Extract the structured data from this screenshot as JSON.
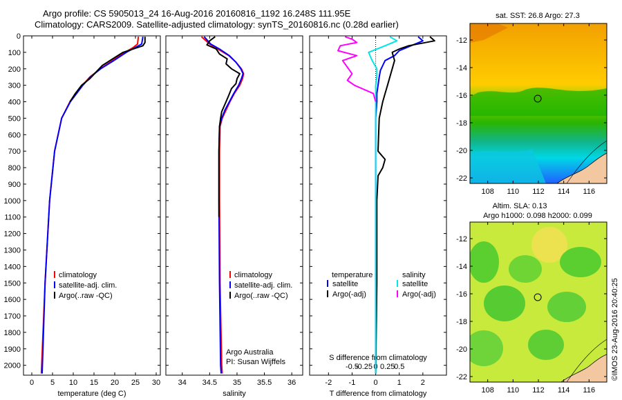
{
  "header": {
    "line1": "Argo profile: CS 5905013_24 16-Aug-2016 20160816_1192 16.248S 111.95E",
    "line2": "Climatology: CARS2009. Satellite-adjusted climatology: synTS_20160816.nc (0.28d earlier)"
  },
  "stamp": "©IMOS 23-Aug-2016 20:40:25",
  "colors": {
    "climatology": "#ff0000",
    "satellite": "#0000ff",
    "argo": "#000000",
    "sat_salinity": "#00e5e5",
    "argo_salinity": "#ff00ff"
  },
  "depth_axis": {
    "ticks": [
      0,
      100,
      200,
      300,
      400,
      500,
      600,
      700,
      800,
      900,
      1000,
      1100,
      1200,
      1300,
      1400,
      1500,
      1600,
      1700,
      1800,
      1900,
      2000
    ],
    "range": [
      0,
      2060
    ]
  },
  "chart_data": [
    {
      "type": "line",
      "id": "temperature",
      "xlabel": "temperature (deg C)",
      "xlim": [
        -2,
        31
      ],
      "xticks": [
        0,
        5,
        10,
        15,
        20,
        25,
        30
      ],
      "legend": {
        "placement": "bottom-left",
        "entries": [
          "climatology",
          "satellite-adj. clim.",
          "Argo(..raw -QC)"
        ]
      },
      "series": [
        {
          "name": "climatology",
          "color": "#ff0000",
          "depth": [
            5,
            50,
            70,
            100,
            150,
            200,
            250,
            300,
            400,
            500,
            700,
            1000,
            1500,
            2050
          ],
          "values": [
            25.7,
            25.5,
            24.5,
            22.5,
            19.5,
            16.5,
            14.0,
            12.2,
            9.2,
            7.2,
            5.5,
            4.3,
            3.2,
            2.3
          ]
        },
        {
          "name": "satellite-adj. clim.",
          "color": "#0000ff",
          "depth": [
            5,
            50,
            70,
            100,
            150,
            200,
            250,
            300,
            400,
            500,
            700,
            1000,
            1500,
            2050
          ],
          "values": [
            26.8,
            26.5,
            25.0,
            22.8,
            19.8,
            16.6,
            14.1,
            12.3,
            9.3,
            7.2,
            5.5,
            4.3,
            3.2,
            2.5
          ]
        },
        {
          "name": "Argo(..raw -QC)",
          "color": "#000000",
          "depth": [
            5,
            40,
            60,
            75,
            100,
            140,
            180,
            220,
            260,
            300,
            350,
            400
          ],
          "values": [
            27.3,
            27.3,
            26.8,
            25.0,
            22.0,
            19.5,
            17.0,
            15.5,
            14.0,
            12.0,
            10.5,
            9.2
          ]
        }
      ]
    },
    {
      "type": "line",
      "id": "salinity",
      "xlabel": "salinity",
      "xlim": [
        33.7,
        36.2
      ],
      "xticks": [
        34,
        34.5,
        35,
        35.5,
        36
      ],
      "legend": {
        "placement": "bottom-left",
        "entries": [
          "climatology",
          "satellite-adj. clim.",
          "Argo(..raw -QC)"
        ]
      },
      "annotation": [
        "Argo Australia",
        "PI: Susan Wijffels"
      ],
      "series": [
        {
          "name": "climatology",
          "color": "#ff0000",
          "depth": [
            5,
            50,
            80,
            120,
            160,
            200,
            230,
            260,
            300,
            350,
            400,
            450,
            500,
            550,
            700,
            1000,
            1500,
            2000,
            2050
          ],
          "values": [
            34.35,
            34.5,
            34.65,
            34.85,
            34.98,
            35.08,
            35.12,
            35.1,
            35.05,
            34.95,
            34.87,
            34.8,
            34.73,
            34.69,
            34.68,
            34.68,
            34.69,
            34.72,
            34.73
          ]
        },
        {
          "name": "satellite-adj. clim.",
          "color": "#0000ff",
          "depth": [
            5,
            50,
            80,
            120,
            160,
            200,
            230,
            260,
            300,
            350,
            400,
            450,
            500,
            550,
            700,
            1000,
            1500,
            2000,
            2050
          ],
          "values": [
            34.4,
            34.52,
            34.68,
            34.86,
            34.98,
            35.07,
            35.11,
            35.08,
            35.03,
            34.94,
            34.86,
            34.78,
            34.72,
            34.68,
            34.67,
            34.67,
            34.68,
            34.7,
            34.71
          ]
        },
        {
          "name": "Argo(..raw -QC)",
          "color": "#000000",
          "depth": [
            5,
            30,
            55,
            80,
            110,
            140,
            170,
            200,
            230,
            260,
            290,
            320,
            360,
            400,
            460,
            500,
            550,
            700,
            1000,
            1100
          ],
          "values": [
            34.6,
            34.5,
            34.45,
            34.62,
            34.68,
            34.82,
            34.8,
            34.9,
            35.05,
            35.0,
            34.98,
            34.9,
            34.85,
            34.8,
            34.72,
            34.7,
            34.68,
            34.67,
            34.67,
            34.67
          ]
        }
      ]
    },
    {
      "type": "line",
      "id": "difference",
      "xlabel": "T difference from climatology",
      "xlabel2": "S difference from climatology",
      "xlim": [
        -2.8,
        3.0
      ],
      "xticks": [
        -2,
        -1,
        0,
        1,
        2
      ],
      "xticks_top": [
        -0.5,
        -0.25,
        0,
        0.25,
        0.5
      ],
      "legend": {
        "placement": "bottom",
        "entries": [
          "temperature",
          "salinity",
          "satellite",
          "Argo(-adj)"
        ]
      },
      "series": [
        {
          "name": "temperature satellite",
          "color": "#0000ff",
          "depth": [
            5,
            30,
            60,
            90,
            120,
            150,
            180,
            210,
            250,
            300,
            350,
            400,
            500,
            700,
            1000,
            2050
          ],
          "values": [
            1.8,
            2.0,
            1.5,
            1.0,
            0.8,
            0.4,
            0.3,
            0.2,
            0.15,
            0.1,
            0.05,
            0.05,
            0.0,
            0.0,
            0.0,
            0.0
          ]
        },
        {
          "name": "temperature Argo(-adj)",
          "color": "#000000",
          "depth": [
            5,
            30,
            60,
            80,
            100,
            150,
            200,
            250,
            300,
            350,
            400,
            500,
            700,
            750,
            800,
            850,
            1000,
            1500,
            2050
          ],
          "values": [
            2.3,
            2.5,
            1.4,
            1.0,
            0.7,
            0.8,
            0.7,
            0.6,
            0.5,
            0.4,
            0.3,
            0.15,
            0.1,
            0.4,
            0.3,
            0.1,
            0.05,
            0.05,
            0.0
          ]
        },
        {
          "name": "salinity satellite",
          "color": "#00e5e5",
          "depth": [
            5,
            30,
            60,
            100,
            150,
            200,
            250,
            300,
            400,
            600,
            1000,
            2050
          ],
          "values": [
            0.6,
            0.9,
            0.4,
            -0.3,
            -0.15,
            0.05,
            0.05,
            0.0,
            0.0,
            0.0,
            0.0,
            0.0
          ]
        },
        {
          "name": "salinity Argo(-adj)",
          "color": "#ff00ff",
          "depth": [
            5,
            20,
            40,
            60,
            90,
            120,
            150,
            190,
            230,
            270,
            300,
            350,
            400
          ],
          "values": [
            -1.3,
            -1.0,
            -0.8,
            -1.5,
            -1.6,
            -0.8,
            -1.4,
            -1.2,
            -1.0,
            -1.2,
            -0.9,
            -0.1,
            0.0
          ]
        }
      ]
    }
  ],
  "maps": [
    {
      "id": "sst",
      "title": "sat. SST: 26.8 Argo: 27.3",
      "xticks": [
        108,
        110,
        112,
        114,
        116
      ],
      "yticks": [
        -12,
        -14,
        -16,
        -18,
        -20,
        -22
      ],
      "xlim": [
        106.6,
        117.4
      ],
      "ylim": [
        -22.4,
        -10.8
      ],
      "marker": {
        "lon": 111.95,
        "lat": -16.248
      }
    },
    {
      "id": "sla",
      "title": "Altim. SLA: 0.13",
      "subtitle": "Argo h1000: 0.098 h2000: 0.099",
      "xticks": [
        108,
        110,
        112,
        114,
        116
      ],
      "yticks": [
        -12,
        -14,
        -16,
        -18,
        -20,
        -22
      ],
      "xlim": [
        106.6,
        117.4
      ],
      "ylim": [
        -22.4,
        -10.8
      ],
      "marker": {
        "lon": 111.95,
        "lat": -16.248
      }
    }
  ]
}
